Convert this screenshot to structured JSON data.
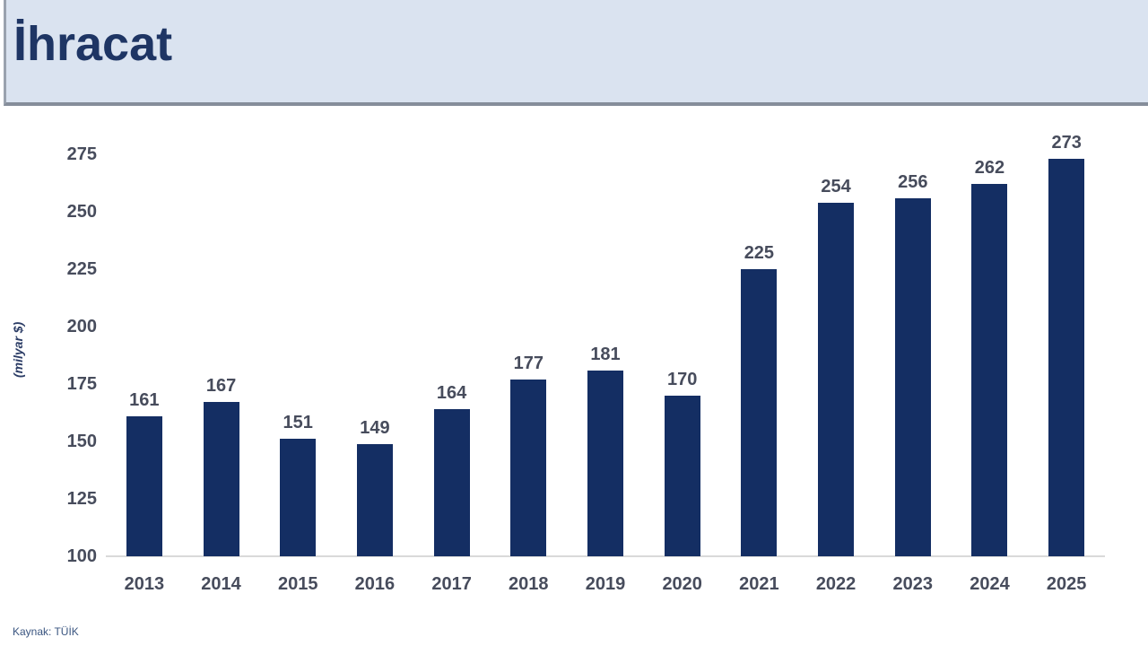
{
  "header": {
    "title": "İhracat"
  },
  "source": "Kaynak: TÜİK",
  "colors": {
    "bar": "#142e63",
    "header_background": "#dae3f0",
    "title_text": "#1e3564",
    "label_text": "#474c5c",
    "axis_line": "#d9d9d9"
  },
  "chart_data": {
    "type": "bar",
    "title": "İhracat",
    "categories": [
      "2013",
      "2014",
      "2015",
      "2016",
      "2017",
      "2018",
      "2019",
      "2020",
      "2021",
      "2022",
      "2023",
      "2024",
      "2025"
    ],
    "values": [
      161,
      167,
      151,
      149,
      164,
      177,
      181,
      170,
      225,
      254,
      256,
      262,
      273
    ],
    "xlabel": "",
    "ylabel": "(milyar $)",
    "ylim": [
      100,
      275
    ],
    "ytick_step": 25,
    "grid": false,
    "legend": "none",
    "bar_color": "#142e63",
    "value_labels": "above bars"
  }
}
